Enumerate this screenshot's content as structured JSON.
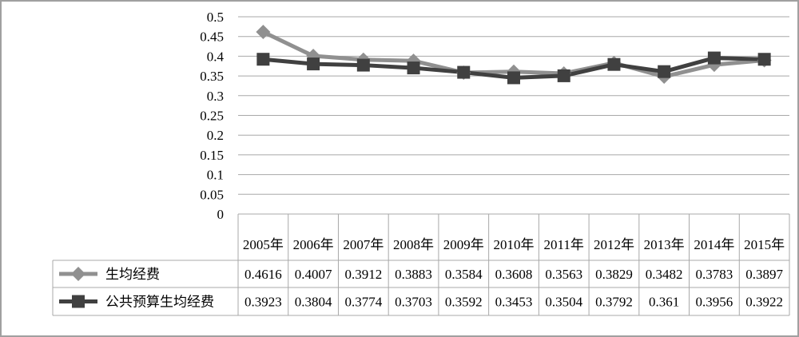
{
  "chart_data": {
    "type": "line",
    "categories": [
      "2005年",
      "2006年",
      "2007年",
      "2008年",
      "2009年",
      "2010年",
      "2011年",
      "2012年",
      "2013年",
      "2014年",
      "2015年"
    ],
    "y_ticks": [
      "0",
      "0.05",
      "0.1",
      "0.15",
      "0.2",
      "0.25",
      "0.3",
      "0.35",
      "0.4",
      "0.45",
      "0.5"
    ],
    "ylim": [
      0,
      0.5
    ],
    "grid": true,
    "legend_position": "data-table-left",
    "series": [
      {
        "name": "生均经费",
        "marker": "diamond",
        "color": "#909090",
        "values": [
          0.4616,
          0.4007,
          0.3912,
          0.3883,
          0.3584,
          0.3608,
          0.3563,
          0.3829,
          0.3482,
          0.3783,
          0.3897
        ],
        "labels": [
          "0.4616",
          "0.4007",
          "0.3912",
          "0.3883",
          "0.3584",
          "0.3608",
          "0.3563",
          "0.3829",
          "0.3482",
          "0.3783",
          "0.3897"
        ]
      },
      {
        "name": "公共预算生均经费",
        "marker": "square",
        "color": "#404040",
        "values": [
          0.3923,
          0.3804,
          0.3774,
          0.3703,
          0.3592,
          0.3453,
          0.3504,
          0.3792,
          0.361,
          0.3956,
          0.3922
        ],
        "labels": [
          "0.3923",
          "0.3804",
          "0.3774",
          "0.3703",
          "0.3592",
          "0.3453",
          "0.3504",
          "0.3792",
          "0.361",
          "0.3956",
          "0.3922"
        ]
      }
    ]
  }
}
